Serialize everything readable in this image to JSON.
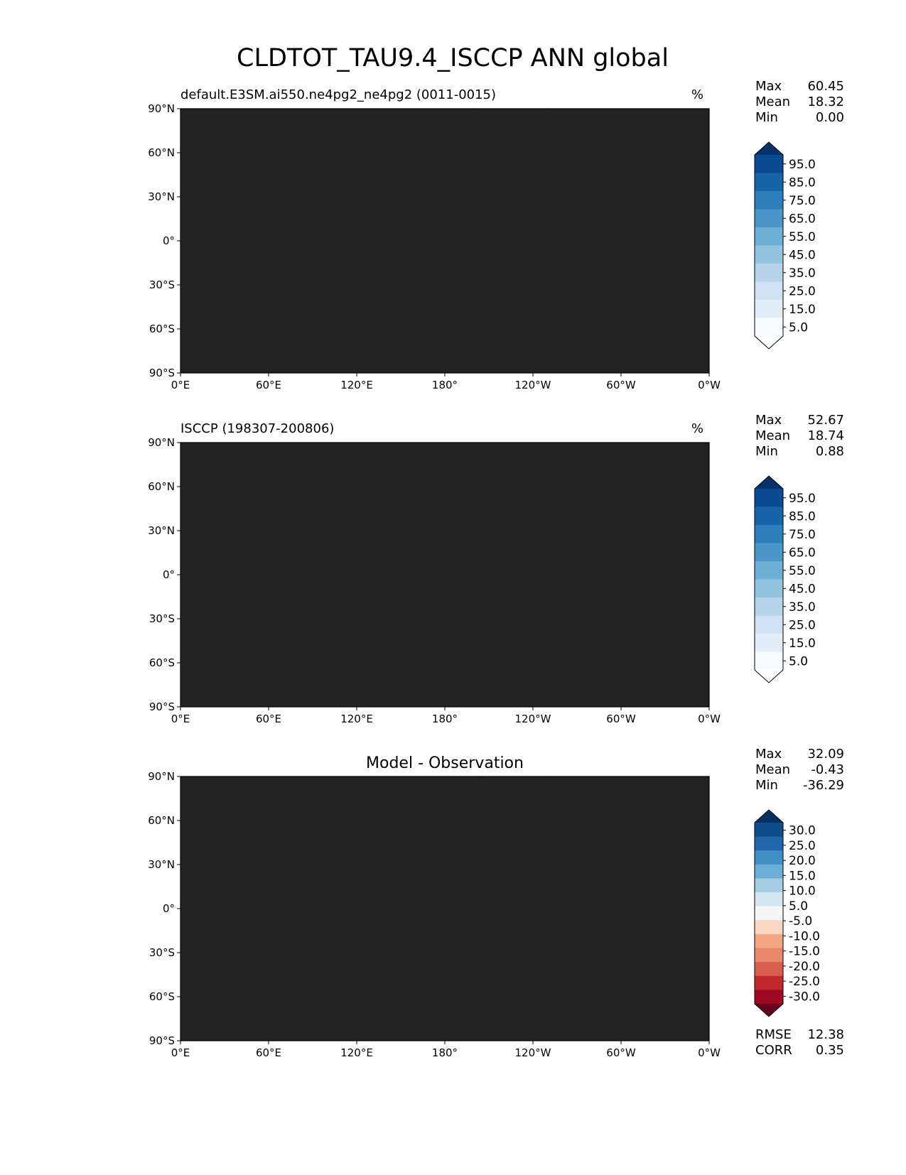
{
  "figure_title": "CLDTOT_TAU9.4_ISCCP ANN global",
  "x_ticks": [
    "0°E",
    "60°E",
    "120°E",
    "180°",
    "120°W",
    "60°W",
    "0°W"
  ],
  "y_ticks": [
    "90°N",
    "60°N",
    "30°N",
    "0°",
    "30°S",
    "60°S",
    "90°S"
  ],
  "panels": [
    {
      "title_left": "default.E3SM.ai550.ne4pg2_ne4pg2 (0011-0015)",
      "title_center": "",
      "units": "%",
      "stats": [
        {
          "label": "Max",
          "value": "60.45"
        },
        {
          "label": "Mean",
          "value": "18.32"
        },
        {
          "label": "Min",
          "value": "0.00"
        }
      ],
      "colorbar_labels": [
        "95.0",
        "85.0",
        "75.0",
        "65.0",
        "55.0",
        "45.0",
        "35.0",
        "25.0",
        "15.0",
        "5.0"
      ]
    },
    {
      "title_left": "ISCCP (198307-200806)",
      "title_center": "",
      "units": "%",
      "stats": [
        {
          "label": "Max",
          "value": "52.67"
        },
        {
          "label": "Mean",
          "value": "18.74"
        },
        {
          "label": "Min",
          "value": "0.88"
        }
      ],
      "colorbar_labels": [
        "95.0",
        "85.0",
        "75.0",
        "65.0",
        "55.0",
        "45.0",
        "35.0",
        "25.0",
        "15.0",
        "5.0"
      ]
    },
    {
      "title_left": "",
      "title_center": "Model - Observation",
      "units": "",
      "stats": [
        {
          "label": "Max",
          "value": "32.09"
        },
        {
          "label": "Mean",
          "value": "-0.43"
        },
        {
          "label": "Min",
          "value": "-36.29"
        }
      ],
      "colorbar_labels": [
        "30.0",
        "25.0",
        "20.0",
        "15.0",
        "10.0",
        "5.0",
        "-5.0",
        "-10.0",
        "-15.0",
        "-20.0",
        "-25.0",
        "-30.0"
      ],
      "extra_stats": [
        {
          "label": "RMSE",
          "value": "12.38"
        },
        {
          "label": "CORR",
          "value": "0.35"
        }
      ]
    }
  ],
  "colors": {
    "blues": [
      "#f7fbff",
      "#e2edf8",
      "#cfe1f2",
      "#b5d4e9",
      "#93c3df",
      "#6daed5",
      "#4b97c9",
      "#2f7ebc",
      "#1864aa",
      "#0a4a90",
      "#08306b"
    ],
    "diverging": [
      "#67001f",
      "#9c0824",
      "#c1272d",
      "#d6604d",
      "#e8896b",
      "#f4a582",
      "#fbd7c4",
      "#f5f5f5",
      "#d4e6f1",
      "#a6cee3",
      "#6baed6",
      "#3e8ec4",
      "#2166ac",
      "#0f4c8a",
      "#053061"
    ]
  }
}
